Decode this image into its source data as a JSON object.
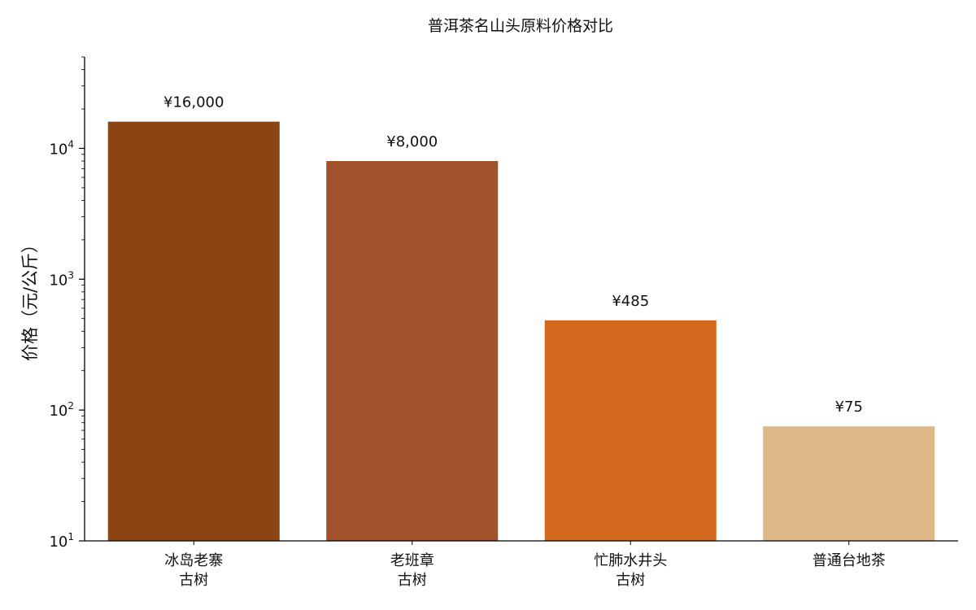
{
  "chart_data": {
    "type": "bar",
    "title": "普洱茶名山头原料价格对比",
    "ylabel": "价格（元/公斤）",
    "xlabel": "",
    "yscale": "log",
    "ylim": [
      10,
      50000
    ],
    "yticks": [
      {
        "value": 10,
        "base": "10",
        "exp": "1"
      },
      {
        "value": 100,
        "base": "10",
        "exp": "2"
      },
      {
        "value": 1000,
        "base": "10",
        "exp": "3"
      },
      {
        "value": 10000,
        "base": "10",
        "exp": "4"
      }
    ],
    "categories": [
      {
        "lines": [
          "冰岛老寨",
          "古树"
        ],
        "value": 16000,
        "label": "¥16,000",
        "color": "#8B4513"
      },
      {
        "lines": [
          "老班章",
          "古树"
        ],
        "value": 8000,
        "label": "¥8,000",
        "color": "#A0522D"
      },
      {
        "lines": [
          "忙肺水井头",
          "古树"
        ],
        "value": 485,
        "label": "¥485",
        "color": "#D2691E"
      },
      {
        "lines": [
          "普通台地茶"
        ],
        "value": 75,
        "label": "¥75",
        "color": "#DEB887"
      }
    ],
    "grid": false,
    "legend": "none"
  }
}
